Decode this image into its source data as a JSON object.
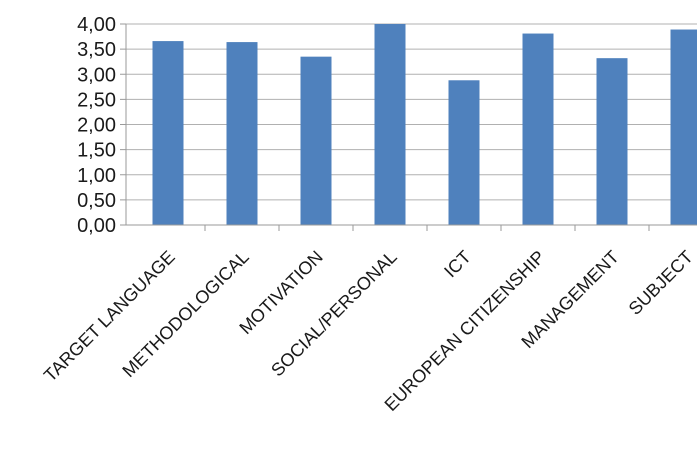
{
  "chart_data": {
    "type": "bar",
    "title": "",
    "xlabel": "",
    "ylabel": "",
    "categories": [
      "TARGET LANGUAGE",
      "METHODOLOGICAL",
      "MOTIVATION",
      "SOCIAL/PERSONAL",
      "ICT",
      "EUROPEAN CITIZENSHIP",
      "MANAGEMENT",
      "SUBJECT"
    ],
    "values": [
      3.66,
      3.64,
      3.35,
      4.0,
      2.88,
      3.81,
      3.32,
      3.89
    ],
    "ylim": [
      0,
      4
    ],
    "yticks": [
      "0,00",
      "0,50",
      "1,00",
      "1,50",
      "2,00",
      "2,50",
      "3,00",
      "3,50",
      "4,00"
    ],
    "grid": true,
    "legend": "none",
    "bar_color": "#4f81bd"
  }
}
